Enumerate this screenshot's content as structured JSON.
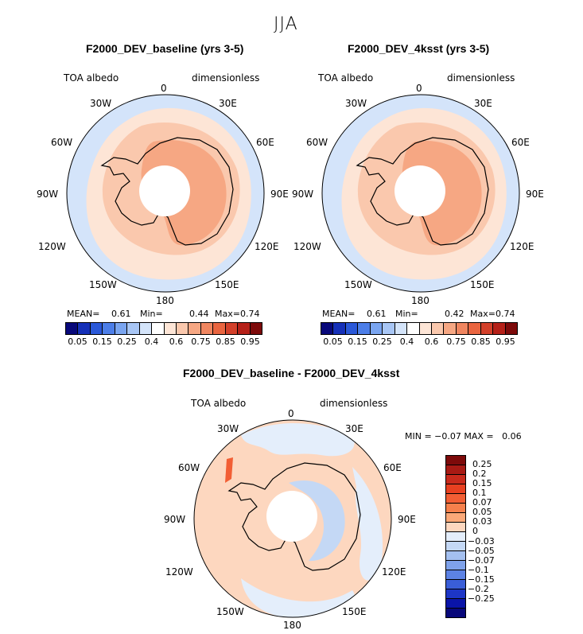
{
  "figure": {
    "season": "JJA",
    "maps": [
      {
        "id": "baseline",
        "title": "F2000_DEV_baseline (yrs 3-5)",
        "variable": "TOA albedo",
        "units": "dimensionless",
        "lon_labels": {
          "n": "0",
          "ne": "30E",
          "ene": "60E",
          "e": "90E",
          "ese": "120E",
          "se": "150E",
          "s": "180",
          "sw": "150W",
          "wsw": "120W",
          "w": "90W",
          "wnw": "60W",
          "nw": "30W"
        },
        "mean_label": "MEAN=",
        "mean": "0.61",
        "min_label": "Min=",
        "min": "0.44",
        "max_label": "Max=",
        "max": "0.74"
      },
      {
        "id": "4ksst",
        "title": "F2000_DEV_4ksst (yrs 3-5)",
        "variable": "TOA albedo",
        "units": "dimensionless",
        "lon_labels": {
          "n": "0",
          "ne": "30E",
          "ene": "60E",
          "e": "90E",
          "ese": "120E",
          "se": "150E",
          "s": "180",
          "sw": "150W",
          "wsw": "120W",
          "w": "90W",
          "wnw": "60W",
          "nw": "30W"
        },
        "mean_label": "MEAN=",
        "mean": "0.61",
        "min_label": "Min=",
        "min": "0.42",
        "max_label": "Max=",
        "max": "0.74"
      },
      {
        "id": "diff",
        "title": "F2000_DEV_baseline - F2000_DEV_4ksst",
        "variable": "TOA albedo",
        "units": "dimensionless",
        "lon_labels": {
          "n": "0",
          "ne": "30E",
          "ene": "60E",
          "e": "90E",
          "ese": "120E",
          "se": "150E",
          "s": "180",
          "sw": "150W",
          "wsw": "120W",
          "w": "90W",
          "wnw": "60W",
          "nw": "30W"
        },
        "min_max_text": "MIN = −0.07 MAX =   0.06"
      }
    ],
    "colorbar_main": {
      "colors": [
        "#08087a",
        "#1530b8",
        "#2a58d8",
        "#4c7ee8",
        "#7aa5f0",
        "#a8c6f5",
        "#d4e4fa",
        "#ffffff",
        "#fde5d6",
        "#fac8ad",
        "#f6a783",
        "#f08660",
        "#e96540",
        "#d3402a",
        "#b52018",
        "#7d0a0a"
      ],
      "tick_labels": [
        "0.05",
        "0.15",
        "0.25",
        "0.4",
        "0.6",
        "0.75",
        "0.85",
        "0.95"
      ]
    },
    "colorbar_diff": {
      "colors": [
        "#7d0a0a",
        "#a81a14",
        "#c92a1c",
        "#e84020",
        "#f25e34",
        "#f6804c",
        "#fba878",
        "#fdd7bf",
        "#e4eefb",
        "#c4d8f5",
        "#a4c0f0",
        "#7fa2ea",
        "#5c82e4",
        "#3a5ed8",
        "#1d36c6",
        "#0a14a8",
        "#08087a"
      ],
      "tick_labels": [
        "0.25",
        "0.2",
        "0.15",
        "0.1",
        "0.07",
        "0.05",
        "0.03",
        "0",
        "−0.03",
        "−0.05",
        "−0.07",
        "−0.1",
        "−0.15",
        "−0.2",
        "−0.25"
      ]
    }
  }
}
